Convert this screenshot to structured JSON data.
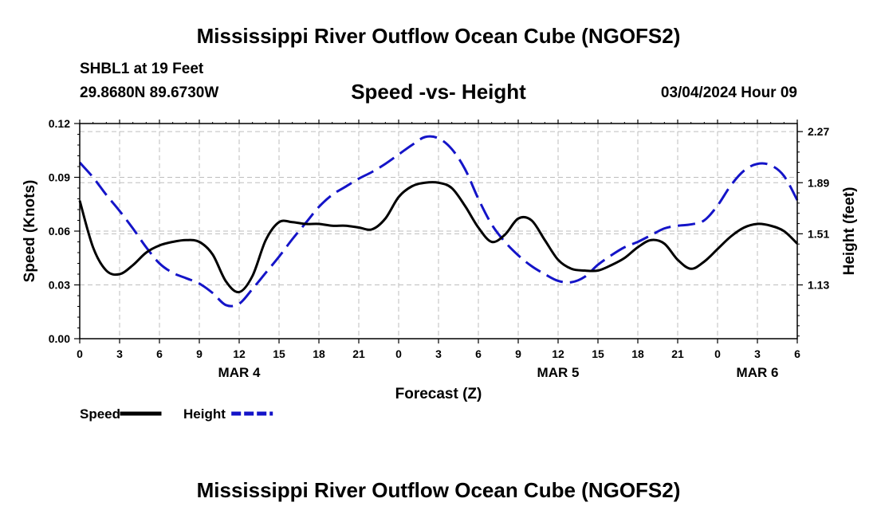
{
  "header": {
    "title": "Mississippi River Outflow Ocean Cube (NGOFS2)",
    "station": "SHBL1 at 19 Feet",
    "coords": "29.8680N  89.6730W",
    "subtitle": "Speed -vs- Height",
    "datetime": "03/04/2024 Hour 09"
  },
  "footer": {
    "title": "Mississippi River Outflow Ocean Cube (NGOFS2)"
  },
  "chart_data": {
    "type": "line",
    "title": "Speed -vs- Height",
    "xlabel": "Forecast (Z)",
    "ylabel": "Speed (Knots)",
    "y2label": "Height (feet)",
    "x_range": [
      0,
      54
    ],
    "ylim": [
      0,
      0.12
    ],
    "y2lim": [
      0.73,
      2.33
    ],
    "x_ticks": [
      0,
      3,
      6,
      9,
      12,
      15,
      18,
      21,
      24,
      27,
      30,
      33,
      36,
      39,
      42,
      45,
      48,
      51,
      54
    ],
    "x_tick_labels": [
      "0",
      "3",
      "6",
      "9",
      "12",
      "15",
      "18",
      "21",
      "0",
      "3",
      "6",
      "9",
      "12",
      "15",
      "18",
      "21",
      "0",
      "3",
      "6"
    ],
    "y_ticks": [
      0,
      0.03,
      0.06,
      0.09,
      0.12
    ],
    "y_tick_labels": [
      "0.00",
      "0.03",
      "0.06",
      "0.09",
      "0.12"
    ],
    "y2_ticks": [
      1.13,
      1.51,
      1.89,
      2.27
    ],
    "y2_tick_labels": [
      "1.13",
      "1.51",
      "1.89",
      "2.27"
    ],
    "date_labels": [
      {
        "x": 12,
        "label": "MAR 4"
      },
      {
        "x": 36,
        "label": "MAR 5"
      },
      {
        "x": 51,
        "label": "MAR 6"
      }
    ],
    "grid": true,
    "legend_position": "bottom-left",
    "series": [
      {
        "name": "Speed",
        "axis": "left",
        "color": "#000000",
        "style": "solid",
        "x": [
          0,
          1,
          2,
          3,
          4,
          5,
          6,
          7,
          8,
          9,
          10,
          11,
          12,
          13,
          14,
          15,
          16,
          17,
          18,
          19,
          20,
          21,
          22,
          23,
          24,
          25,
          26,
          27,
          28,
          29,
          30,
          31,
          32,
          33,
          34,
          35,
          36,
          37,
          38,
          39,
          40,
          41,
          42,
          43,
          44,
          45,
          46,
          47,
          48,
          49,
          50,
          51,
          52,
          53,
          54
        ],
        "values": [
          0.077,
          0.051,
          0.038,
          0.036,
          0.041,
          0.048,
          0.052,
          0.054,
          0.055,
          0.054,
          0.047,
          0.032,
          0.026,
          0.035,
          0.055,
          0.065,
          0.065,
          0.064,
          0.064,
          0.063,
          0.063,
          0.062,
          0.061,
          0.067,
          0.079,
          0.085,
          0.087,
          0.087,
          0.084,
          0.074,
          0.062,
          0.054,
          0.058,
          0.067,
          0.066,
          0.055,
          0.044,
          0.039,
          0.038,
          0.038,
          0.041,
          0.045,
          0.051,
          0.055,
          0.053,
          0.044,
          0.039,
          0.043,
          0.05,
          0.057,
          0.062,
          0.064,
          0.063,
          0.06,
          0.053
        ]
      },
      {
        "name": "Height",
        "axis": "right",
        "color": "#1414c8",
        "style": "dashed",
        "x": [
          0,
          1,
          2,
          3,
          4,
          5,
          6,
          7,
          8,
          9,
          10,
          11,
          12,
          13,
          14,
          15,
          16,
          17,
          18,
          19,
          20,
          21,
          22,
          23,
          24,
          25,
          26,
          27,
          28,
          29,
          30,
          31,
          32,
          33,
          34,
          35,
          36,
          37,
          38,
          39,
          40,
          41,
          42,
          43,
          44,
          45,
          46,
          47,
          48,
          49,
          50,
          51,
          52,
          53,
          54
        ],
        "values": [
          2.04,
          1.93,
          1.8,
          1.68,
          1.55,
          1.41,
          1.29,
          1.22,
          1.18,
          1.14,
          1.07,
          0.98,
          0.99,
          1.1,
          1.22,
          1.34,
          1.47,
          1.59,
          1.71,
          1.8,
          1.86,
          1.92,
          1.97,
          2.03,
          2.1,
          2.17,
          2.23,
          2.22,
          2.14,
          1.99,
          1.77,
          1.58,
          1.45,
          1.35,
          1.27,
          1.21,
          1.16,
          1.15,
          1.19,
          1.28,
          1.35,
          1.41,
          1.45,
          1.5,
          1.55,
          1.57,
          1.58,
          1.61,
          1.72,
          1.87,
          1.98,
          2.03,
          2.02,
          1.94,
          1.76
        ]
      }
    ]
  }
}
